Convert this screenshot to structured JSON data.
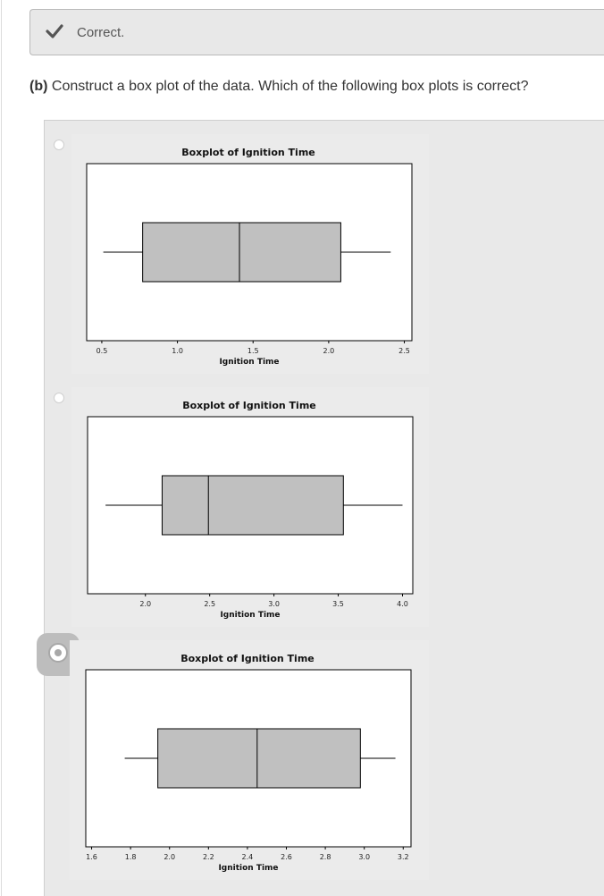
{
  "feedback": {
    "text": "Correct."
  },
  "question": {
    "part": "(b)",
    "text": " Construct a box plot of the data. Which of the following box plots is correct?"
  },
  "options": [
    {
      "selected": false,
      "chart_data": {
        "type": "box",
        "title": "Boxplot of Ignition Time",
        "xlabel": "Ignition Time",
        "xlim": [
          0.4,
          2.55
        ],
        "ticks": [
          "0.5",
          "1.0",
          "1.5",
          "2.0",
          "2.5"
        ],
        "tick_values": [
          0.5,
          1.0,
          1.5,
          2.0,
          2.5
        ],
        "whisker_low": 0.51,
        "q1": 0.77,
        "median": 1.41,
        "q3": 2.08,
        "whisker_high": 2.41
      }
    },
    {
      "selected": false,
      "chart_data": {
        "type": "box",
        "title": "Boxplot of Ignition Time",
        "xlabel": "Ignition Time",
        "xlim": [
          1.55,
          4.08
        ],
        "ticks": [
          "2.0",
          "2.5",
          "3.0",
          "3.5",
          "4.0"
        ],
        "tick_values": [
          2.0,
          2.5,
          3.0,
          3.5,
          4.0
        ],
        "whisker_low": 1.69,
        "q1": 2.13,
        "median": 2.49,
        "q3": 3.54,
        "whisker_high": 4.0
      }
    },
    {
      "selected": true,
      "chart_data": {
        "type": "box",
        "title": "Boxplot of Ignition Time",
        "xlabel": "Ignition Time",
        "xlim": [
          1.57,
          3.24
        ],
        "ticks": [
          "1.6",
          "1.8",
          "2.0",
          "2.2",
          "2.4",
          "2.6",
          "2.8",
          "3.0",
          "3.2"
        ],
        "tick_values": [
          1.6,
          1.8,
          2.0,
          2.2,
          2.4,
          2.6,
          2.8,
          3.0,
          3.2
        ],
        "whisker_low": 1.77,
        "q1": 1.94,
        "median": 2.45,
        "q3": 2.98,
        "whisker_high": 3.16
      }
    }
  ],
  "colors": {
    "box_fill": "#c0c0c0",
    "panel": "#e9e9e9",
    "selected_ring": "#bdbdbd"
  },
  "icons": {
    "feedback": "checkmark-icon"
  }
}
